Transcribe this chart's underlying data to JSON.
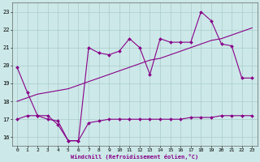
{
  "xlabel": "Windchill (Refroidissement éolien,°C)",
  "background_color": "#cce8e8",
  "line_color": "#880088",
  "grid_color": "#aacccc",
  "xlim": [
    -0.5,
    23.5
  ],
  "ylim": [
    15.5,
    23.5
  ],
  "yticks": [
    16,
    17,
    18,
    19,
    20,
    21,
    22,
    23
  ],
  "xticks": [
    0,
    1,
    2,
    3,
    4,
    5,
    6,
    7,
    8,
    9,
    10,
    11,
    12,
    13,
    14,
    15,
    16,
    17,
    18,
    19,
    20,
    21,
    22,
    23
  ],
  "line_jagged_x": [
    0,
    1,
    2,
    3,
    4,
    5,
    6,
    7,
    8,
    9,
    10,
    11,
    12,
    13,
    14,
    15,
    16,
    17,
    18,
    19,
    20,
    21,
    22,
    23
  ],
  "line_jagged_y": [
    19.9,
    18.5,
    17.2,
    17.2,
    16.7,
    15.8,
    15.8,
    21.0,
    20.7,
    20.6,
    20.8,
    21.5,
    21.0,
    19.5,
    21.5,
    21.3,
    21.3,
    21.3,
    23.0,
    22.5,
    21.2,
    21.1,
    19.3,
    19.3
  ],
  "line_smooth_x": [
    0,
    1,
    2,
    3,
    4,
    5,
    6,
    7,
    8,
    9,
    10,
    11,
    12,
    13,
    14,
    15,
    16,
    17,
    18,
    19,
    20,
    21,
    22,
    23
  ],
  "line_smooth_y": [
    18.0,
    18.2,
    18.4,
    18.5,
    18.6,
    18.7,
    18.9,
    19.1,
    19.3,
    19.5,
    19.7,
    19.9,
    20.1,
    20.3,
    20.4,
    20.6,
    20.8,
    21.0,
    21.2,
    21.4,
    21.5,
    21.7,
    21.9,
    22.1
  ],
  "line_flat_x": [
    0,
    1,
    2,
    3,
    4,
    5,
    6,
    7,
    8,
    9,
    10,
    11,
    12,
    13,
    14,
    15,
    16,
    17,
    18,
    19,
    20,
    21,
    22,
    23
  ],
  "line_flat_y": [
    17.0,
    17.2,
    17.2,
    17.0,
    16.9,
    15.8,
    15.8,
    16.8,
    16.9,
    17.0,
    17.0,
    17.0,
    17.0,
    17.0,
    17.0,
    17.0,
    17.0,
    17.1,
    17.1,
    17.1,
    17.2,
    17.2,
    17.2,
    17.2
  ]
}
